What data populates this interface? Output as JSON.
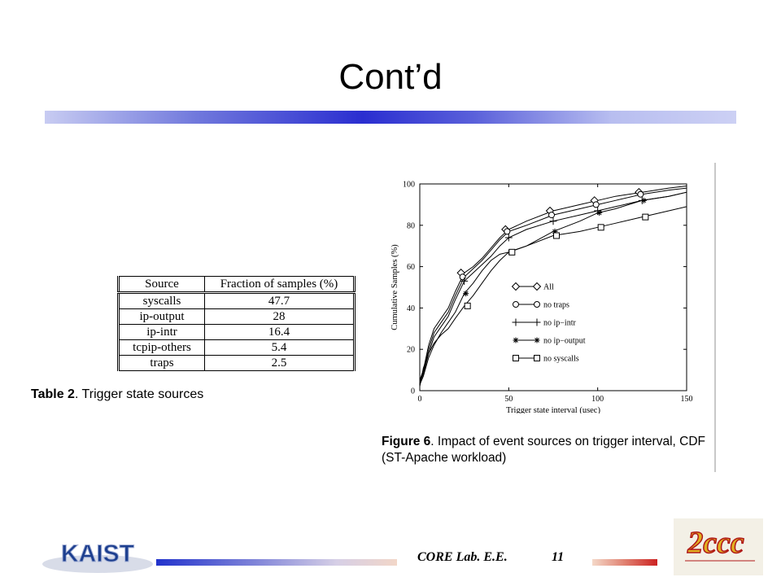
{
  "slide": {
    "title": "Cont’d",
    "footer_text": "CORE Lab. E.E.",
    "page_number": "11",
    "colors": {
      "title_bar_center": "#2a2ed0",
      "footer_right_accent": "#cc2222",
      "kaist_logo": "#1d3f8f"
    }
  },
  "logos": {
    "kaist": {
      "text": "KAIST",
      "icon": "kaist-logo"
    },
    "ccc": {
      "text": "2ccc",
      "icon": "2ccc-logo"
    }
  },
  "table": {
    "caption_label": "Table 2",
    "caption_text": ". Trigger state sources",
    "headers": [
      "Source",
      "Fraction of samples (%)"
    ],
    "rows": [
      [
        "syscalls",
        "47.7"
      ],
      [
        "ip-output",
        "28"
      ],
      [
        "ip-intr",
        "16.4"
      ],
      [
        "tcpip-others",
        "5.4"
      ],
      [
        "traps",
        "2.5"
      ]
    ]
  },
  "figure": {
    "caption_label": "Figure 6",
    "caption_text": ".  Impact of event sources on trigger interval, CDF (ST-Apache workload)"
  },
  "chart_data": {
    "type": "line",
    "title": "",
    "xlabel": "Trigger state interval (usec)",
    "ylabel": "Cumulative Samples (%)",
    "xlim": [
      0,
      150
    ],
    "ylim": [
      0,
      100
    ],
    "xticks": [
      0,
      50,
      100,
      150
    ],
    "yticks": [
      0,
      20,
      40,
      60,
      80,
      100
    ],
    "grid": false,
    "legend_position": "right-middle",
    "series": [
      {
        "name": "All",
        "marker": "diamond",
        "x": [
          0,
          2,
          5,
          8,
          12,
          16,
          20,
          25,
          30,
          35,
          40,
          45,
          50,
          60,
          75,
          90,
          100,
          110,
          125,
          140,
          150
        ],
        "y": [
          5,
          10,
          22,
          30,
          35,
          40,
          48,
          57,
          60,
          64,
          69,
          74,
          78,
          82,
          87,
          90,
          92,
          94,
          96,
          98,
          99
        ]
      },
      {
        "name": "no traps",
        "marker": "circle",
        "x": [
          0,
          2,
          5,
          8,
          12,
          16,
          20,
          25,
          30,
          35,
          40,
          45,
          50,
          60,
          75,
          90,
          100,
          110,
          125,
          140,
          150
        ],
        "y": [
          4,
          9,
          20,
          28,
          33,
          38,
          46,
          55,
          59,
          63,
          68,
          73,
          77,
          80,
          85,
          88,
          90,
          92,
          95,
          97,
          98
        ]
      },
      {
        "name": "no ip−intr",
        "marker": "plus",
        "x": [
          0,
          2,
          5,
          8,
          12,
          16,
          20,
          25,
          30,
          35,
          40,
          45,
          50,
          60,
          75,
          90,
          100,
          110,
          125,
          140,
          150
        ],
        "y": [
          4,
          8,
          18,
          26,
          31,
          36,
          44,
          53,
          57,
          61,
          65,
          70,
          74,
          78,
          82,
          85,
          87,
          89,
          92,
          94,
          96
        ]
      },
      {
        "name": "no ip−output",
        "marker": "asterisk",
        "x": [
          0,
          2,
          5,
          8,
          12,
          16,
          20,
          25,
          30,
          35,
          40,
          45,
          50,
          60,
          75,
          90,
          100,
          110,
          125,
          140,
          150
        ],
        "y": [
          3,
          7,
          16,
          22,
          28,
          33,
          38,
          47,
          52,
          58,
          63,
          66,
          67,
          70,
          77,
          82,
          86,
          88,
          92,
          94,
          96
        ]
      },
      {
        "name": "no syscalls",
        "marker": "square",
        "x": [
          0,
          2,
          5,
          8,
          12,
          16,
          20,
          25,
          30,
          35,
          40,
          45,
          50,
          60,
          75,
          90,
          100,
          110,
          125,
          140,
          150
        ],
        "y": [
          2,
          11,
          18,
          23,
          27,
          30,
          35,
          41,
          46,
          52,
          58,
          63,
          67,
          70,
          75,
          77,
          79,
          81,
          84,
          87,
          89
        ]
      }
    ]
  }
}
